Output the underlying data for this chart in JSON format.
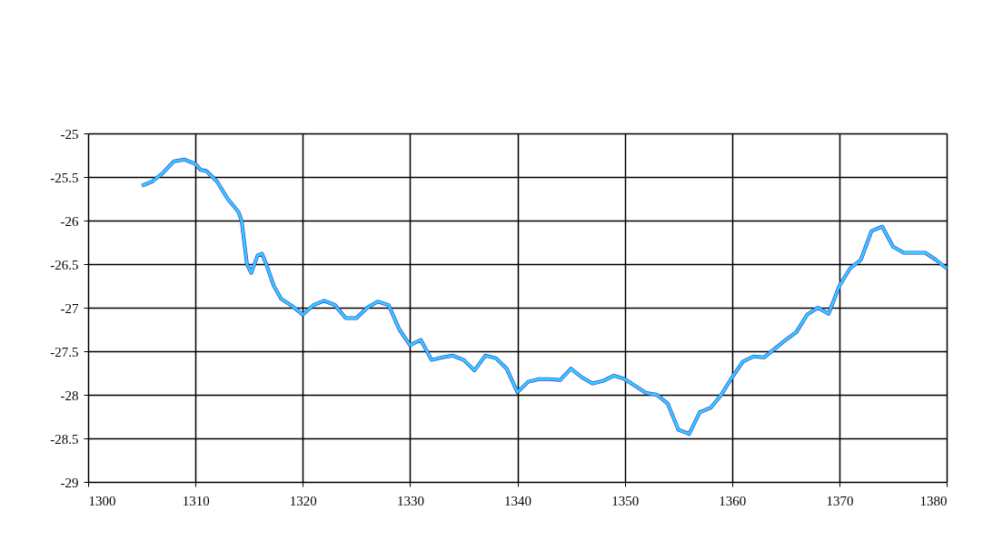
{
  "chart_data": {
    "type": "line",
    "x": [
      1305,
      1306,
      1307,
      1308,
      1309,
      1310,
      1310.5,
      1311,
      1312,
      1313,
      1314,
      1314.3,
      1314.8,
      1315.2,
      1315.8,
      1316.2,
      1316.6,
      1317.3,
      1318,
      1319,
      1320,
      1321,
      1322,
      1323,
      1324,
      1325,
      1326,
      1327,
      1328,
      1329,
      1330,
      1331,
      1332,
      1333,
      1334,
      1335,
      1336,
      1337,
      1338,
      1339,
      1340,
      1341,
      1342,
      1343,
      1344,
      1345,
      1346,
      1347,
      1348,
      1349,
      1350,
      1351,
      1352,
      1353,
      1354,
      1355,
      1356,
      1357,
      1358,
      1359,
      1360,
      1361,
      1362,
      1363,
      1364,
      1365,
      1366,
      1367,
      1368,
      1369,
      1370,
      1371,
      1372,
      1373,
      1374,
      1375,
      1376,
      1377,
      1378,
      1379,
      1380
    ],
    "series": [
      {
        "color": "#33ccff",
        "values": [
          -25.6,
          -25.55,
          -25.45,
          -25.32,
          -25.3,
          -25.35,
          -25.42,
          -25.43,
          -25.55,
          -25.75,
          -25.9,
          -26.0,
          -26.5,
          -26.6,
          -26.4,
          -26.38,
          -26.5,
          -26.75,
          -26.9,
          -26.98,
          -27.08,
          -26.97,
          -26.92,
          -26.97,
          -27.12,
          -27.12,
          -27.0,
          -26.93,
          -26.97,
          -27.25,
          -27.43,
          -27.37,
          -27.6,
          -27.57,
          -27.55,
          -27.6,
          -27.72,
          -27.55,
          -27.58,
          -27.7,
          -27.97,
          -27.85,
          -27.82,
          -27.82,
          -27.83,
          -27.7,
          -27.8,
          -27.87,
          -27.84,
          -27.78,
          -27.82,
          -27.9,
          -27.98,
          -28.0,
          -28.1,
          -28.4,
          -28.45,
          -28.2,
          -28.15,
          -28.0,
          -27.8,
          -27.62,
          -27.56,
          -27.57,
          -27.47,
          -27.37,
          -27.28,
          -27.08,
          -27.0,
          -27.07,
          -26.75,
          -26.55,
          -26.45,
          -26.12,
          -26.07,
          -26.3,
          -26.37,
          -26.37,
          -26.37,
          -26.45,
          -26.55
        ]
      }
    ],
    "xlim": [
      1300,
      1380
    ],
    "xticks": [
      1300,
      1310,
      1320,
      1330,
      1340,
      1350,
      1360,
      1370,
      1380
    ],
    "ylim": [
      -29,
      -25
    ],
    "yticks": [
      -29,
      -28.5,
      -28,
      -27.5,
      -27,
      -26.5,
      -26,
      -25.5,
      -25
    ],
    "grid": true,
    "line_style": "solid",
    "marker": "none"
  }
}
